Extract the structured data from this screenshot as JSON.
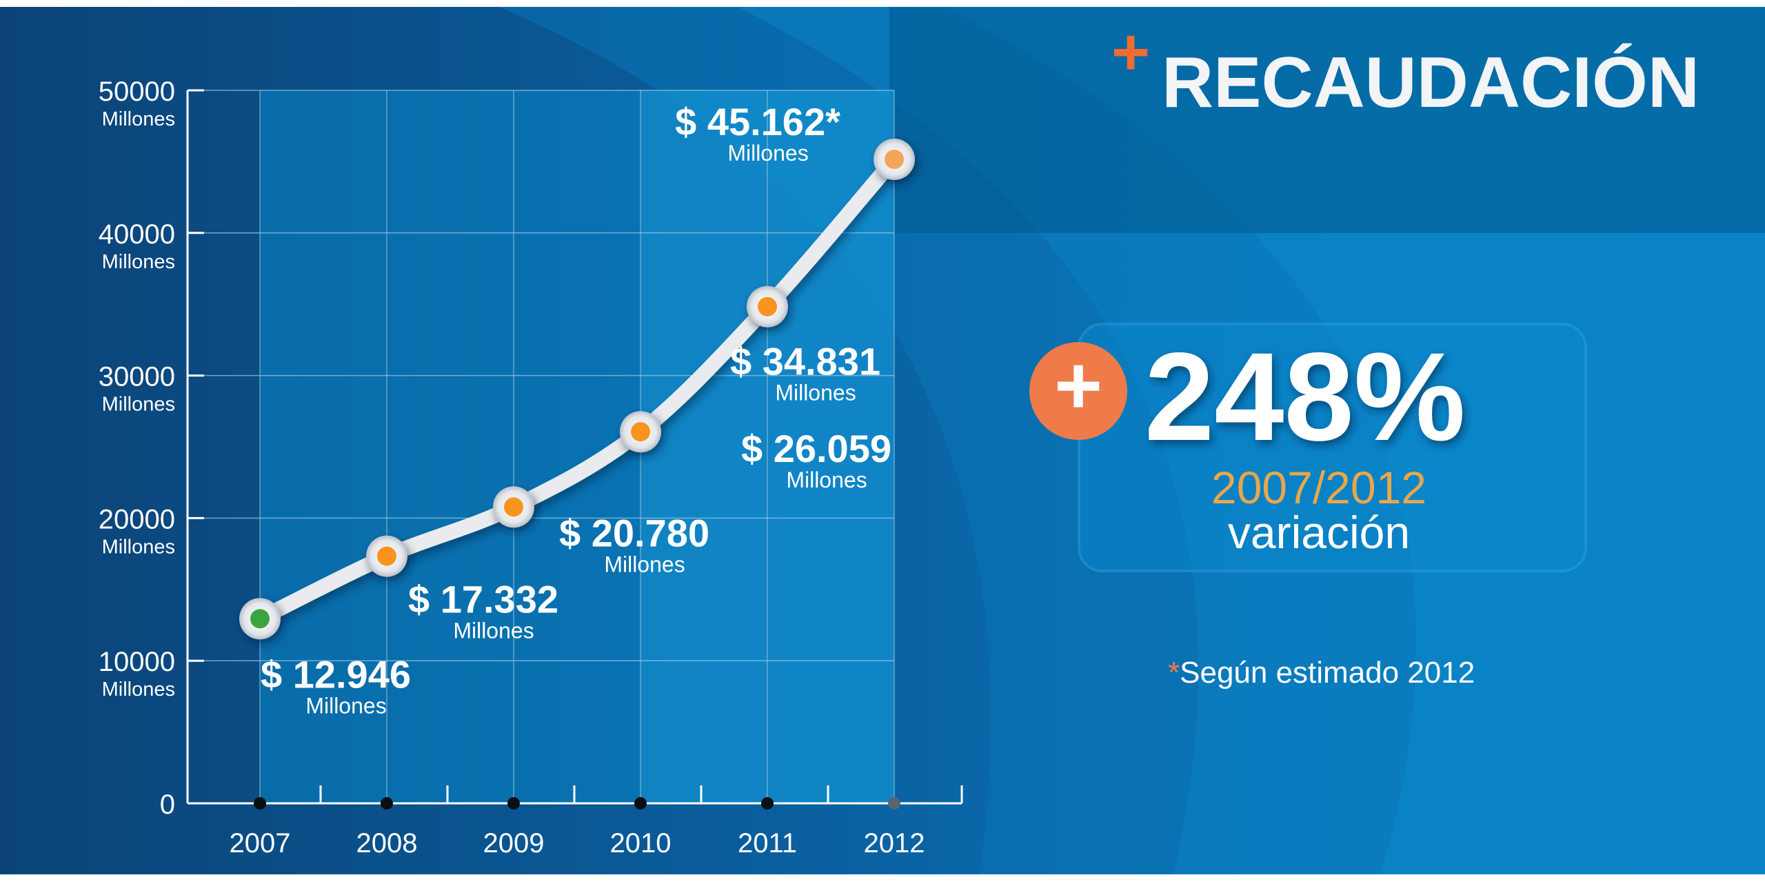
{
  "header": {
    "plus_sign": "+",
    "title": "RECAUDACIÓN"
  },
  "stat": {
    "plus_sign": "+",
    "value": "248%",
    "period": "2007/2012",
    "caption": "variación"
  },
  "footnote": {
    "mark": "*",
    "text": "Según estimado 2012"
  },
  "colors": {
    "accent_orange": "#f07c4a",
    "period_gold": "#e8a74a",
    "point_orange": "#f7931e",
    "point_green": "#3aa53f",
    "background_dark": "#0b4a82",
    "background_light": "#0a7fc0"
  },
  "chart_data": {
    "type": "line",
    "x": [
      "2007",
      "2008",
      "2009",
      "2010",
      "2011",
      "2012"
    ],
    "values": [
      12946,
      17332,
      20780,
      26059,
      34831,
      45162
    ],
    "value_labels": [
      "$ 12.946",
      "$ 17.332",
      "$ 20.780",
      "$ 26.059",
      "$ 34.831",
      "$ 45.162*"
    ],
    "value_unit": "Millones",
    "ylim": [
      0,
      50000
    ],
    "yticks": [
      {
        "value": 0,
        "label": "0",
        "unit": ""
      },
      {
        "value": 10000,
        "label": "10000",
        "unit": "Millones"
      },
      {
        "value": 20000,
        "label": "20000",
        "unit": "Millones"
      },
      {
        "value": 30000,
        "label": "30000",
        "unit": "Millones"
      },
      {
        "value": 40000,
        "label": "40000",
        "unit": "Millones"
      },
      {
        "value": 50000,
        "label": "50000",
        "unit": "Millones"
      }
    ],
    "grid": true,
    "highlight_from": "2010",
    "estimated_point": "2012"
  }
}
